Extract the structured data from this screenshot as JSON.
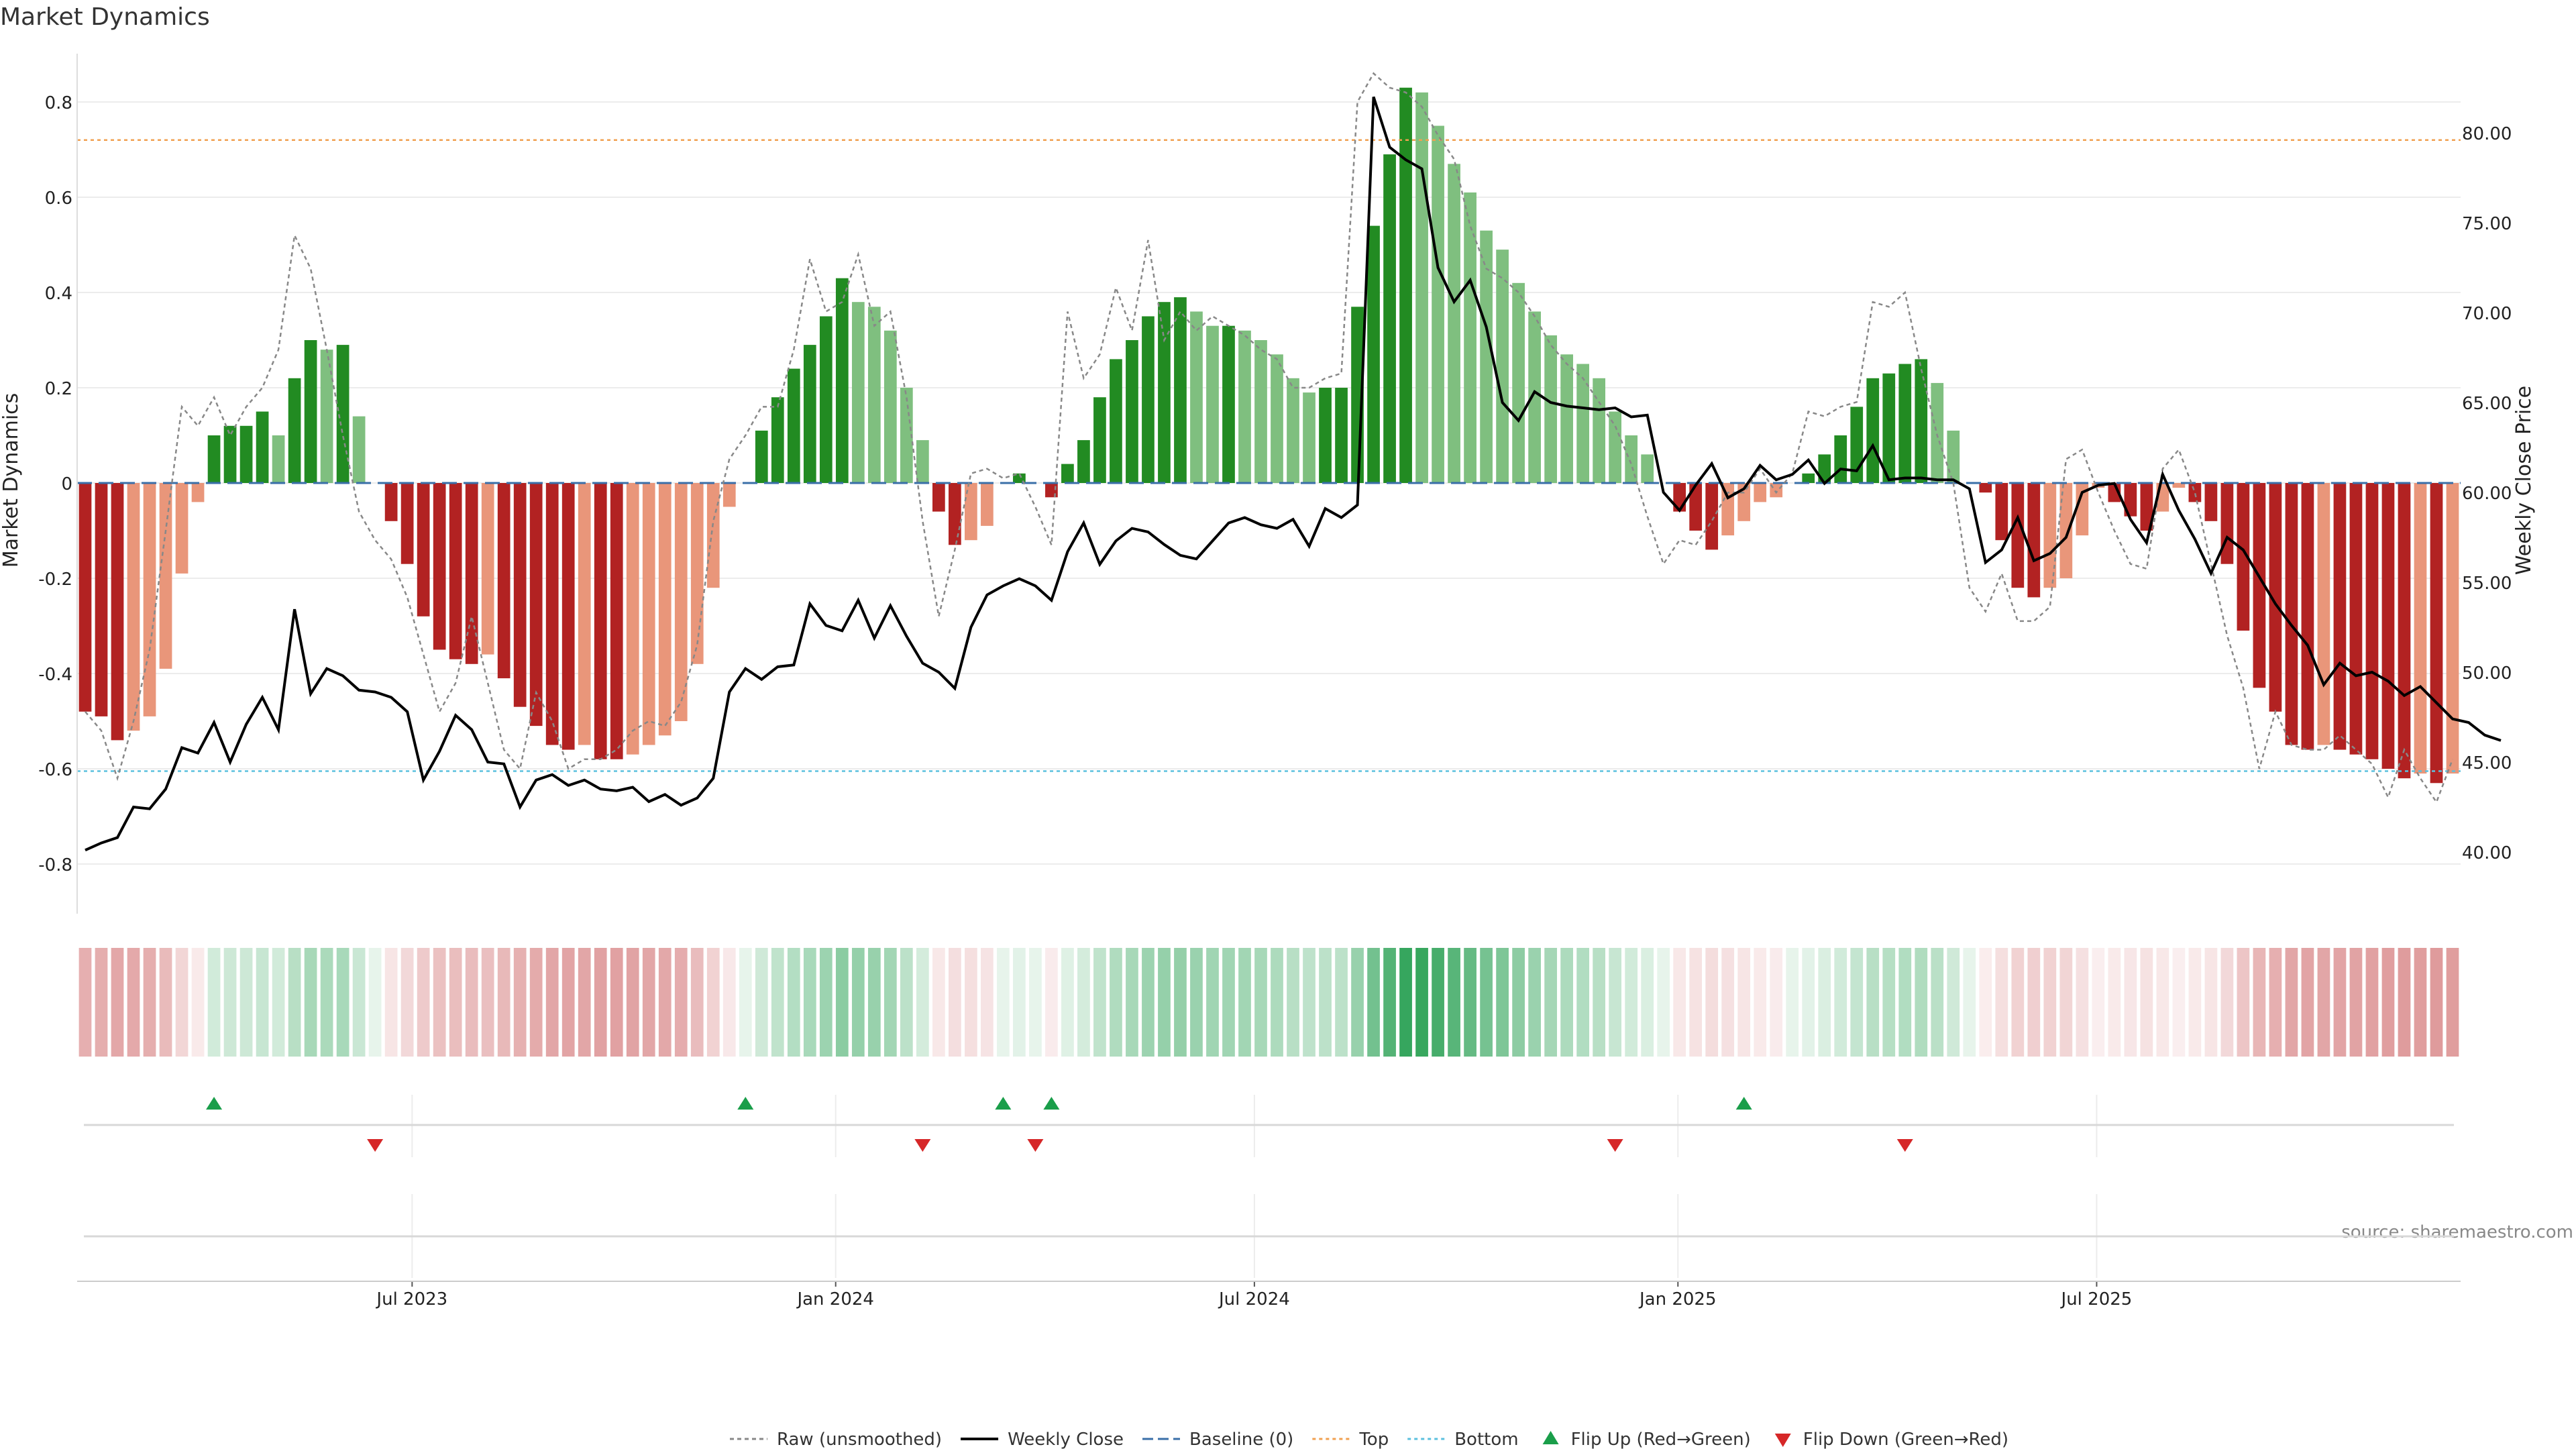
{
  "chart_data": {
    "type": "bar",
    "title": "Market Dynamics",
    "ylabel": "Market Dynamics",
    "ylabel_right": "Weekly Close Price",
    "ylim": [
      -0.9,
      0.9
    ],
    "ylim_right": [
      38.5,
      86.0
    ],
    "yticks": [
      -0.8,
      -0.6,
      -0.4,
      -0.2,
      0,
      0.2,
      0.4,
      0.6,
      0.8
    ],
    "yticks_right": [
      "40.00",
      "45.00",
      "50.00",
      "55.00",
      "60.00",
      "65.00",
      "70.00",
      "75.00",
      "80.00"
    ],
    "xticks": [
      {
        "label": "Jul 2023",
        "week": 20.3
      },
      {
        "label": "Jan 2024",
        "week": 46.6
      },
      {
        "label": "Jul 2024",
        "week": 72.6
      },
      {
        "label": "Jan 2025",
        "week": 98.9
      },
      {
        "label": "Jul 2025",
        "week": 124.9
      }
    ],
    "grid": true,
    "legend_position": "bottom",
    "top_level": 0.72,
    "bottom_level": -0.605,
    "baseline": 0,
    "colors": {
      "strong_up": "#228B22",
      "weak_up": "#7FBF7F",
      "strong_down": "#B22222",
      "weak_down": "#E9967A",
      "raw": "#888888",
      "close": "#000000",
      "baseline": "#3A6FA8",
      "top": "#F0A050",
      "bottom": "#5BC0DE",
      "flip_up": "#1A9E4A",
      "flip_down": "#D62728"
    },
    "series": [
      {
        "name": "Market Dynamics",
        "values": [
          -0.48,
          -0.49,
          -0.54,
          -0.52,
          -0.49,
          -0.39,
          -0.19,
          -0.04,
          0.1,
          0.12,
          0.12,
          0.15,
          0.1,
          0.22,
          0.3,
          0.28,
          0.29,
          0.14,
          0.0,
          -0.08,
          -0.17,
          -0.28,
          -0.35,
          -0.37,
          -0.38,
          -0.36,
          -0.41,
          -0.47,
          -0.51,
          -0.55,
          -0.56,
          -0.55,
          -0.58,
          -0.58,
          -0.57,
          -0.55,
          -0.53,
          -0.5,
          -0.38,
          -0.22,
          -0.05,
          0.0,
          0.11,
          0.18,
          0.24,
          0.29,
          0.35,
          0.43,
          0.38,
          0.37,
          0.32,
          0.2,
          0.09,
          -0.06,
          -0.13,
          -0.12,
          -0.09,
          0.0,
          0.02,
          0.0,
          -0.03,
          0.04,
          0.09,
          0.18,
          0.26,
          0.3,
          0.35,
          0.38,
          0.39,
          0.36,
          0.33,
          0.33,
          0.32,
          0.3,
          0.27,
          0.22,
          0.19,
          0.2,
          0.2,
          0.37,
          0.54,
          0.69,
          0.83,
          0.82,
          0.75,
          0.67,
          0.61,
          0.53,
          0.49,
          0.42,
          0.36,
          0.31,
          0.27,
          0.25,
          0.22,
          0.15,
          0.1,
          0.06,
          0.0,
          -0.06,
          -0.1,
          -0.14,
          -0.11,
          -0.08,
          -0.04,
          -0.03,
          0.0,
          0.02,
          0.06,
          0.1,
          0.16,
          0.22,
          0.23,
          0.25,
          0.26,
          0.21,
          0.11,
          0.0,
          -0.02,
          -0.12,
          -0.22,
          -0.24,
          -0.22,
          -0.2,
          -0.11,
          -0.01,
          -0.04,
          -0.07,
          -0.1,
          -0.06,
          -0.01,
          -0.04,
          -0.08,
          -0.17,
          -0.31,
          -0.43,
          -0.48,
          -0.55,
          -0.56,
          -0.55,
          -0.56,
          -0.57,
          -0.58,
          -0.6,
          -0.62,
          -0.61,
          -0.63,
          -0.61
        ]
      },
      {
        "name": "Raw (unsmoothed)",
        "values": [
          -0.48,
          -0.52,
          -0.62,
          -0.5,
          -0.35,
          -0.1,
          0.16,
          0.12,
          0.18,
          0.1,
          0.16,
          0.2,
          0.28,
          0.52,
          0.45,
          0.28,
          0.1,
          -0.06,
          -0.12,
          -0.16,
          -0.24,
          -0.36,
          -0.48,
          -0.42,
          -0.28,
          -0.42,
          -0.56,
          -0.6,
          -0.44,
          -0.5,
          -0.6,
          -0.58,
          -0.58,
          -0.56,
          -0.52,
          -0.5,
          -0.51,
          -0.46,
          -0.34,
          -0.08,
          0.05,
          0.1,
          0.16,
          0.16,
          0.28,
          0.47,
          0.36,
          0.38,
          0.48,
          0.33,
          0.36,
          0.18,
          -0.08,
          -0.28,
          -0.14,
          0.02,
          0.03,
          0.01,
          0.02,
          -0.05,
          -0.13,
          0.36,
          0.22,
          0.27,
          0.41,
          0.32,
          0.51,
          0.3,
          0.36,
          0.32,
          0.35,
          0.33,
          0.31,
          0.28,
          0.26,
          0.2,
          0.2,
          0.22,
          0.23,
          0.8,
          0.86,
          0.83,
          0.82,
          0.79,
          0.73,
          0.68,
          0.54,
          0.45,
          0.43,
          0.4,
          0.35,
          0.29,
          0.25,
          0.22,
          0.17,
          0.12,
          0.04,
          -0.07,
          -0.17,
          -0.12,
          -0.13,
          -0.08,
          -0.02,
          -0.02,
          0.03,
          -0.02,
          0.02,
          0.15,
          0.14,
          0.16,
          0.17,
          0.38,
          0.37,
          0.4,
          0.24,
          0.1,
          0.0,
          -0.22,
          -0.27,
          -0.19,
          -0.29,
          -0.29,
          -0.26,
          0.05,
          0.07,
          -0.02,
          -0.1,
          -0.17,
          -0.18,
          0.03,
          0.07,
          -0.02,
          -0.17,
          -0.32,
          -0.43,
          -0.6,
          -0.48,
          -0.55,
          -0.56,
          -0.56,
          -0.53,
          -0.56,
          -0.59,
          -0.66,
          -0.56,
          -0.62,
          -0.67,
          -0.58
        ]
      },
      {
        "name": "Weekly Close",
        "values": [
          40.1,
          40.5,
          40.8,
          42.5,
          42.4,
          43.5,
          45.8,
          45.5,
          47.2,
          45.0,
          47.1,
          48.6,
          46.8,
          53.5,
          48.8,
          50.2,
          49.8,
          49.0,
          48.9,
          48.6,
          47.8,
          44.0,
          45.6,
          47.6,
          46.8,
          45.0,
          44.9,
          42.5,
          44.0,
          44.3,
          43.7,
          44.0,
          43.5,
          43.4,
          43.6,
          42.8,
          43.2,
          42.6,
          43.0,
          44.1,
          48.9,
          50.2,
          49.6,
          50.3,
          50.4,
          53.8,
          52.6,
          52.3,
          54.0,
          51.9,
          53.7,
          52.0,
          50.5,
          50.0,
          49.1,
          52.5,
          54.3,
          54.8,
          55.2,
          54.8,
          54.0,
          56.7,
          58.3,
          56.0,
          57.3,
          58.0,
          57.8,
          57.1,
          56.5,
          56.3,
          57.3,
          58.3,
          58.6,
          58.2,
          58.0,
          58.5,
          57.0,
          59.1,
          58.6,
          59.3,
          82.0,
          79.2,
          78.5,
          78.0,
          72.5,
          70.6,
          71.8,
          69.2,
          65.0,
          64.0,
          65.6,
          65.0,
          64.8,
          64.7,
          64.6,
          64.7,
          64.2,
          64.3,
          60.0,
          59.0,
          60.4,
          61.6,
          59.7,
          60.2,
          61.5,
          60.7,
          61.0,
          61.8,
          60.5,
          61.3,
          61.2,
          62.6,
          60.7,
          60.8,
          60.8,
          60.7,
          60.7,
          60.2,
          56.1,
          56.8,
          58.6,
          56.2,
          56.6,
          57.5,
          60.0,
          60.4,
          60.5,
          58.5,
          57.2,
          61.0,
          59.0,
          57.4,
          55.5,
          57.5,
          56.8,
          55.3,
          53.8,
          52.6,
          51.5,
          49.3,
          50.5,
          49.8,
          50.0,
          49.5,
          48.7,
          49.2,
          48.3,
          47.4,
          47.2,
          46.5,
          46.2
        ]
      }
    ],
    "flip_up_weeks": [
      8,
      41,
      57,
      60,
      103
    ],
    "flip_down_weeks": [
      18,
      52,
      59,
      95,
      113
    ],
    "legend": [
      {
        "key": "raw",
        "label": "Raw (unsmoothed)"
      },
      {
        "key": "close",
        "label": "Weekly Close"
      },
      {
        "key": "baseline",
        "label": "Baseline (0)"
      },
      {
        "key": "top",
        "label": "Top"
      },
      {
        "key": "bottom",
        "label": "Bottom"
      },
      {
        "key": "flip_up",
        "label": "Flip Up (Red→Green)"
      },
      {
        "key": "flip_down",
        "label": "Flip Down (Green→Red)"
      }
    ],
    "source": "source: sharemaestro.com"
  }
}
